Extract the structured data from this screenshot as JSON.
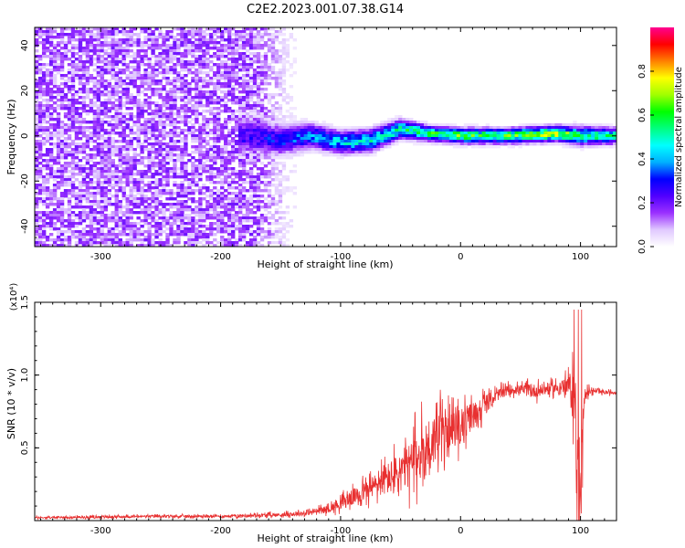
{
  "figure_title": "C2E2.2023.001.07.38.G14",
  "chart_data": [
    {
      "type": "heatmap",
      "title": "",
      "xlabel": "Height of straight line (km)",
      "ylabel": "Frequency (Hz)",
      "xlim": [
        -355,
        130
      ],
      "ylim": [
        -49,
        48
      ],
      "xticks": [
        -300,
        -200,
        -100,
        0,
        100
      ],
      "xtick_labels": [
        "-300",
        "-200",
        "-100",
        "0",
        "100"
      ],
      "yticks": [
        -40,
        -20,
        0,
        20,
        40
      ],
      "ytick_labels": [
        "-40",
        "-20",
        "0",
        "20",
        "40"
      ],
      "colorbar": {
        "label": "Normalized spectral amplitude",
        "range": [
          0,
          1
        ],
        "ticks": [
          0.0,
          0.2,
          0.4,
          0.6,
          0.8
        ],
        "tick_labels": [
          "0.0",
          "0.2",
          "0.4",
          "0.6",
          "0.8"
        ],
        "colors": [
          "#ffffff",
          "#e0c8ff",
          "#9b30ff",
          "#5000ff",
          "#0000ff",
          "#00b0ff",
          "#00ffff",
          "#00ff80",
          "#00ff00",
          "#a0ff00",
          "#ffff00",
          "#ff8000",
          "#ff0000",
          "#ff0090"
        ]
      },
      "noise_region": {
        "x_from": -355,
        "x_to": -130,
        "amplitude": 0.2
      },
      "signal_band": [
        {
          "x": -175,
          "center": 0,
          "width": 10,
          "amplitude": 0.25
        },
        {
          "x": -150,
          "center": -2,
          "width": 8,
          "amplitude": 0.3
        },
        {
          "x": -125,
          "center": 0,
          "width": 7,
          "amplitude": 0.35
        },
        {
          "x": -100,
          "center": -3,
          "width": 6,
          "amplitude": 0.42
        },
        {
          "x": -75,
          "center": -2,
          "width": 6,
          "amplitude": 0.45
        },
        {
          "x": -50,
          "center": 3,
          "width": 5,
          "amplitude": 0.5
        },
        {
          "x": -25,
          "center": 1,
          "width": 4,
          "amplitude": 0.55
        },
        {
          "x": 0,
          "center": 0,
          "width": 4,
          "amplitude": 0.6
        },
        {
          "x": 40,
          "center": 0,
          "width": 4,
          "amplitude": 0.58
        },
        {
          "x": 80,
          "center": 1,
          "width": 4,
          "amplitude": 0.7
        },
        {
          "x": 100,
          "center": 0,
          "width": 5,
          "amplitude": 0.5
        },
        {
          "x": 130,
          "center": 0,
          "width": 4,
          "amplitude": 0.55
        }
      ]
    },
    {
      "type": "line",
      "title": "",
      "xlabel": "Height of straight line (km)",
      "ylabel": "SNR (10 * v/v)",
      "y_multiplier_label": "(x10⁴)",
      "xlim": [
        -355,
        130
      ],
      "ylim": [
        0,
        1.5
      ],
      "xticks": [
        -300,
        -200,
        -100,
        0,
        100
      ],
      "xtick_labels": [
        "-300",
        "-200",
        "-100",
        "0",
        "100"
      ],
      "yticks": [
        0.5,
        1.0,
        1.5
      ],
      "ytick_labels": [
        "0.5",
        "1.0",
        "1.5"
      ],
      "series": [
        {
          "color": "#e83030",
          "x": [
            -355,
            -300,
            -250,
            -200,
            -150,
            -130,
            -110,
            -95,
            -80,
            -65,
            -50,
            -40,
            -30,
            -20,
            -10,
            0,
            10,
            20,
            30,
            40,
            50,
            60,
            70,
            80,
            90,
            95,
            98,
            100,
            103,
            110,
            120,
            130
          ],
          "y": [
            0.02,
            0.025,
            0.03,
            0.03,
            0.04,
            0.05,
            0.08,
            0.14,
            0.2,
            0.27,
            0.33,
            0.4,
            0.48,
            0.58,
            0.62,
            0.64,
            0.72,
            0.8,
            0.86,
            0.9,
            0.9,
            0.89,
            0.9,
            0.91,
            0.93,
            0.85,
            0.35,
            0.05,
            0.88,
            0.89,
            0.88,
            0.88
          ],
          "noise": [
            0.008,
            0.01,
            0.01,
            0.01,
            0.015,
            0.02,
            0.03,
            0.06,
            0.08,
            0.12,
            0.18,
            0.2,
            0.25,
            0.22,
            0.15,
            0.15,
            0.12,
            0.08,
            0.05,
            0.04,
            0.04,
            0.06,
            0.05,
            0.05,
            0.08,
            0.3,
            0.5,
            0.4,
            0.05,
            0.02,
            0.015,
            0.015
          ]
        }
      ]
    }
  ]
}
